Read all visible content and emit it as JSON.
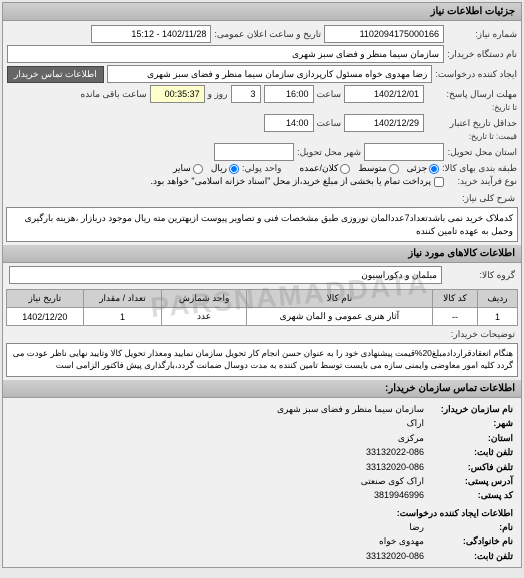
{
  "header": {
    "title": "جزئیات اطلاعات نیاز"
  },
  "form": {
    "request_number_label": "شماره نیاز:",
    "request_number": "1102094175000166",
    "announce_date_label": "تاریخ و ساعت اعلان عمومی:",
    "announce_date": "1402/11/28 - 15:12",
    "buyer_name_label": "نام دستگاه خریدار:",
    "buyer_name": "سازمان سیما منظر و فضای سبز شهری",
    "requester_label": "ایجاد کننده درخواست:",
    "requester": "رضا مهدوی خواه مسئول کارپردازی سازمان سیما منظر و فضای سبز شهری",
    "buyer_contact_btn": "اطلاعات تماس خریدار",
    "deadline_response_label": "مهلت ارسال پاسخ:",
    "deadline_response_to_label": "تا تاریخ:",
    "deadline_response_date": "1402/12/01",
    "deadline_time_label": "ساعت",
    "deadline_response_time": "16:00",
    "remaining_label": "روز و",
    "remaining_days": "3",
    "remaining_time": "00:35:37",
    "remaining_suffix": "ساعت باقی مانده",
    "validity_label": "حداقل تاریخ اعتبار",
    "validity_to_label": "قیمت: تا تاریخ:",
    "validity_date": "1402/12/29",
    "validity_time": "14:00",
    "delivery_location_label": "استان محل تحویل:",
    "delivery_city_label": "شهر محل تحویل:",
    "payment_type_label": "نوع فرآیند خرید:",
    "packaging_label": "طبقه بندی بهای کالا:",
    "packaging_options": {
      "partial": "جزئی",
      "medium": "متوسط",
      "bulk": "کلان/عمده"
    },
    "currency_label": "واحد پولي:",
    "currency_options": {
      "rial": "ریال",
      "other": "سایر"
    },
    "payment_note": "پرداخت تمام یا بخشی از مبلغ خرید،از محل \"اسناد خزانه اسلامی\" خواهد بود."
  },
  "desc_section": {
    "label": "شرح کلی نیاز:",
    "text": "کدملاک خرید نمی باشدتعداد7عددالمان نوروزی طبق مشخصات فنی و تصاویر پیوست ازبهترین مته ریال موجود دربازار ،هزینه بارگیری وحمل به عهده تامین کننده"
  },
  "goods_section": {
    "header": "اطلاعات کالاهای مورد نیاز",
    "group_label": "گروه کالا:",
    "group_value": "مبلمان و دکوراسیون",
    "table": {
      "columns": [
        "ردیف",
        "کد کالا",
        "نام کالا",
        "واحد شمارش",
        "تعداد / مقدار",
        "تاریخ نیاز"
      ],
      "rows": [
        [
          "1",
          "--",
          "آثار هنری عمومی و المان شهری",
          "عدد",
          "1",
          "1402/12/20"
        ]
      ]
    }
  },
  "buyer_notes": {
    "label": "توضیحات خریدار:",
    "text": "هنگام انعقادقراردادمبلغ20%قیمت پیشنهادی خود را به عنوان حسن انجام کار تحویل سازمان نمایید ومعذار تحویل کالا وتایید نهایی ناظر عودت می گردد کلیه امور معاوضی وایمنی سازه می بایست توسط تامین کننده به مدت دوسال ضمانت گردد،بارگذاری پیش فاکتور الزامی است"
  },
  "contact": {
    "header": "اطلاعات تماس سازمان خریدار:",
    "org_label": "نام سازمان خریدار:",
    "org": "سازمان سیما منظر و فضای سبز شهری",
    "city_label": "شهر:",
    "city": "اراک",
    "province_label": "استان:",
    "province": "مرکزی",
    "phone_label": "تلفن ثابت:",
    "phone": "33132022-086",
    "fax_label": "تلفن فاکس:",
    "fax": "33132020-086",
    "address_label": "آدرس پستی:",
    "address": "اراک کوی صنعتی",
    "postal_label": "کد پستی:",
    "postal": "3819946996",
    "requester_section": "اطلاعات ایجاد کننده درخواست:",
    "name_label": "نام:",
    "name": "رضا",
    "surname_label": "نام خانوادگی:",
    "surname": "مهدوی خواه",
    "req_phone_label": "تلفن ثابت:",
    "req_phone": "33132020-086"
  },
  "watermark": "PARSNAMADDATA"
}
